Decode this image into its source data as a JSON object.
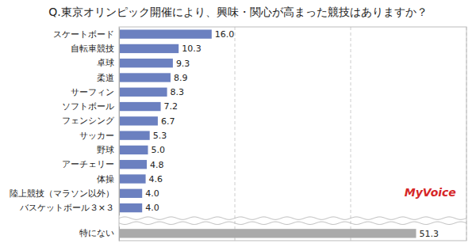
{
  "chart_data": {
    "type": "bar",
    "orientation": "horizontal",
    "title": "Q.東京オリンピック開催により、興味・関心が高まった競技はありますか？",
    "categories": [
      "スケートボード",
      "自転車競技",
      "卓球",
      "柔道",
      "サーフィン",
      "ソフトボール",
      "フェンシング",
      "サッカー",
      "野球",
      "アーチェリー",
      "体操",
      "陸上競技（マラソン以外）",
      "バスケットボール３×３",
      "特にない"
    ],
    "values": [
      16.0,
      10.3,
      9.3,
      8.9,
      8.3,
      7.2,
      6.7,
      5.3,
      5.0,
      4.8,
      4.6,
      4.0,
      4.0,
      51.3
    ],
    "value_labels": [
      "16.0",
      "10.3",
      "9.3",
      "8.9",
      "8.3",
      "7.2",
      "6.7",
      "5.3",
      "5.0",
      "4.8",
      "4.6",
      "4.0",
      "4.0",
      "51.3"
    ],
    "colors": [
      "#6B80C0",
      "#6B80C0",
      "#6B80C0",
      "#6B80C0",
      "#6B80C0",
      "#6B80C0",
      "#6B80C0",
      "#6B80C0",
      "#6B80C0",
      "#6B80C0",
      "#6B80C0",
      "#6B80C0",
      "#6B80C0",
      "#AAAAAA"
    ],
    "xlim": [
      0,
      60
    ],
    "xticks": [
      20,
      40,
      60
    ],
    "grid": true,
    "tick_labels": "y",
    "data_labels": true,
    "annotation": "MyVoice"
  }
}
